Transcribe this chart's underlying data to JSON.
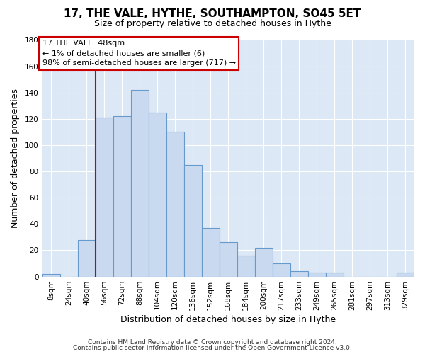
{
  "title": "17, THE VALE, HYTHE, SOUTHAMPTON, SO45 5ET",
  "subtitle": "Size of property relative to detached houses in Hythe",
  "xlabel": "Distribution of detached houses by size in Hythe",
  "ylabel": "Number of detached properties",
  "bar_labels": [
    "8sqm",
    "24sqm",
    "40sqm",
    "56sqm",
    "72sqm",
    "88sqm",
    "104sqm",
    "120sqm",
    "136sqm",
    "152sqm",
    "168sqm",
    "184sqm",
    "200sqm",
    "217sqm",
    "233sqm",
    "249sqm",
    "265sqm",
    "281sqm",
    "297sqm",
    "313sqm",
    "329sqm"
  ],
  "bar_values": [
    2,
    0,
    28,
    121,
    122,
    142,
    125,
    110,
    85,
    37,
    26,
    16,
    22,
    10,
    4,
    3,
    3,
    0,
    0,
    0,
    3
  ],
  "bar_color": "#c9daf0",
  "bar_edge_color": "#6699cc",
  "ylim": [
    0,
    180
  ],
  "yticks": [
    0,
    20,
    40,
    60,
    80,
    100,
    120,
    140,
    160,
    180
  ],
  "vline_x_index": 2.5,
  "vline_color": "#cc0000",
  "annotation_title": "17 THE VALE: 48sqm",
  "annotation_line1": "← 1% of detached houses are smaller (6)",
  "annotation_line2": "98% of semi-detached houses are larger (717) →",
  "annotation_box_color": "#cc0000",
  "footer_line1": "Contains HM Land Registry data © Crown copyright and database right 2024.",
  "footer_line2": "Contains public sector information licensed under the Open Government Licence v3.0.",
  "background_color": "#ffffff",
  "plot_bg_color": "#dce8f5",
  "grid_color": "#ffffff",
  "title_fontsize": 11,
  "subtitle_fontsize": 9,
  "xlabel_fontsize": 9,
  "ylabel_fontsize": 9,
  "tick_fontsize": 7.5,
  "annotation_fontsize": 8
}
